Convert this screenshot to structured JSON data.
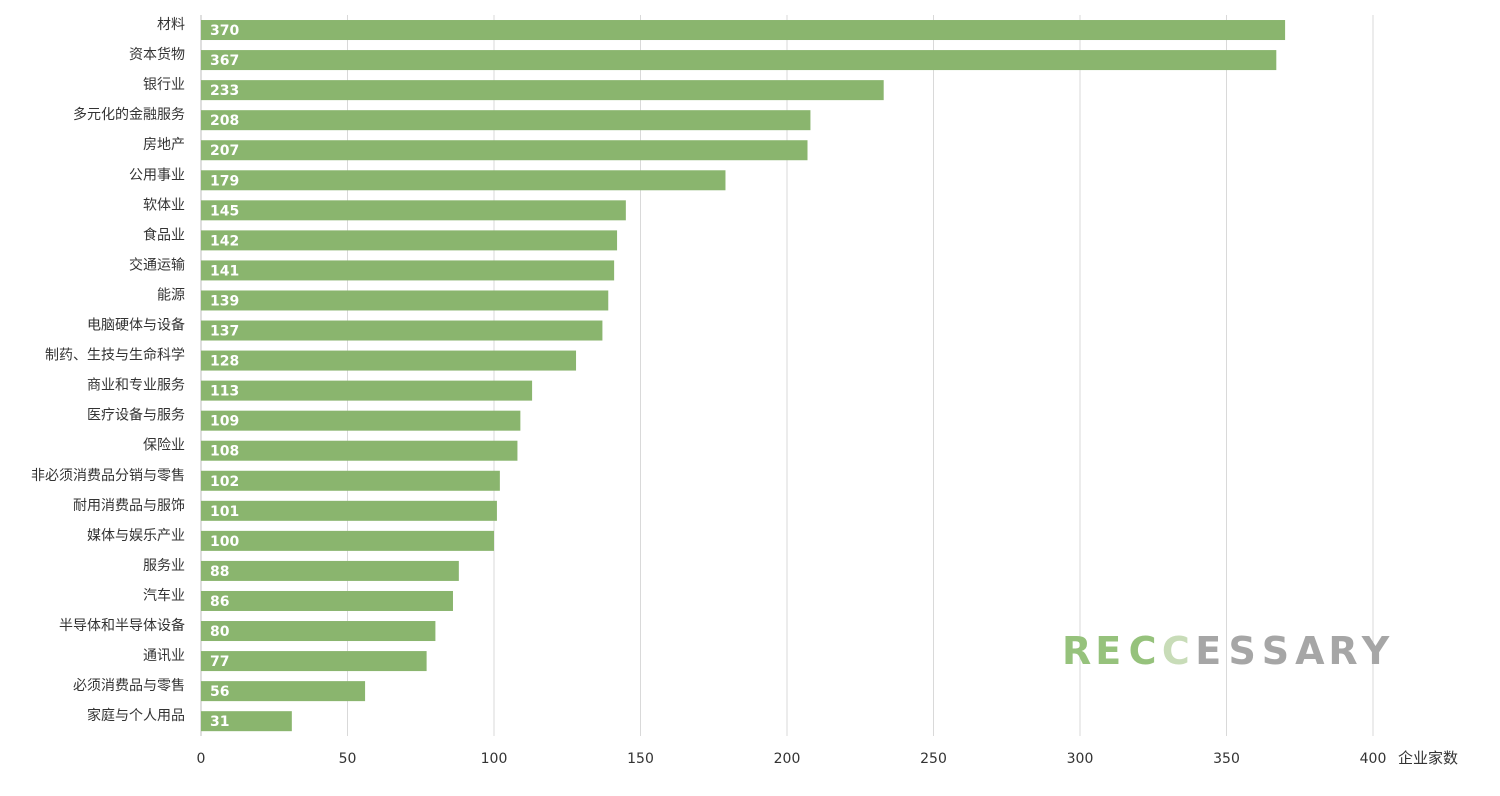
{
  "chart_data": {
    "type": "bar",
    "orientation": "horizontal",
    "categories": [
      "材料",
      "资本货物",
      "银行业",
      "多元化的金融服务",
      "房地产",
      "公用事业",
      "软体业",
      "食品业",
      "交通运输",
      "能源",
      "电脑硬体与设备",
      "制药、生技与生命科学",
      "商业和专业服务",
      "医疗设备与服务",
      "保险业",
      "非必须消费品分销与零售",
      "耐用消费品与服饰",
      "媒体与娱乐产业",
      "服务业",
      "汽车业",
      "半导体和半导体设备",
      "通讯业",
      "必须消费品与零售",
      "家庭与个人用品"
    ],
    "values": [
      370,
      367,
      233,
      208,
      207,
      179,
      145,
      142,
      141,
      139,
      137,
      128,
      113,
      109,
      108,
      102,
      101,
      100,
      88,
      86,
      80,
      77,
      56,
      31
    ],
    "xlabel": "企业家数",
    "ylabel": "",
    "xlim": [
      0,
      400
    ],
    "xticks": [
      0,
      50,
      100,
      150,
      200,
      250,
      300,
      350,
      400
    ],
    "grid": true,
    "bar_color": "#8ab56e",
    "data_labels": "inside-start"
  },
  "watermark": {
    "letters": [
      "R",
      "E",
      "C",
      "C",
      "E",
      "S",
      "S",
      "A",
      "R",
      "Y"
    ],
    "colors": [
      "#96c27c",
      "#96c27c",
      "#96c27c",
      "#c8dcb8",
      "#a6a6a6",
      "#a6a6a6",
      "#a6a6a6",
      "#a6a6a6",
      "#a6a6a6",
      "#a6a6a6"
    ]
  }
}
